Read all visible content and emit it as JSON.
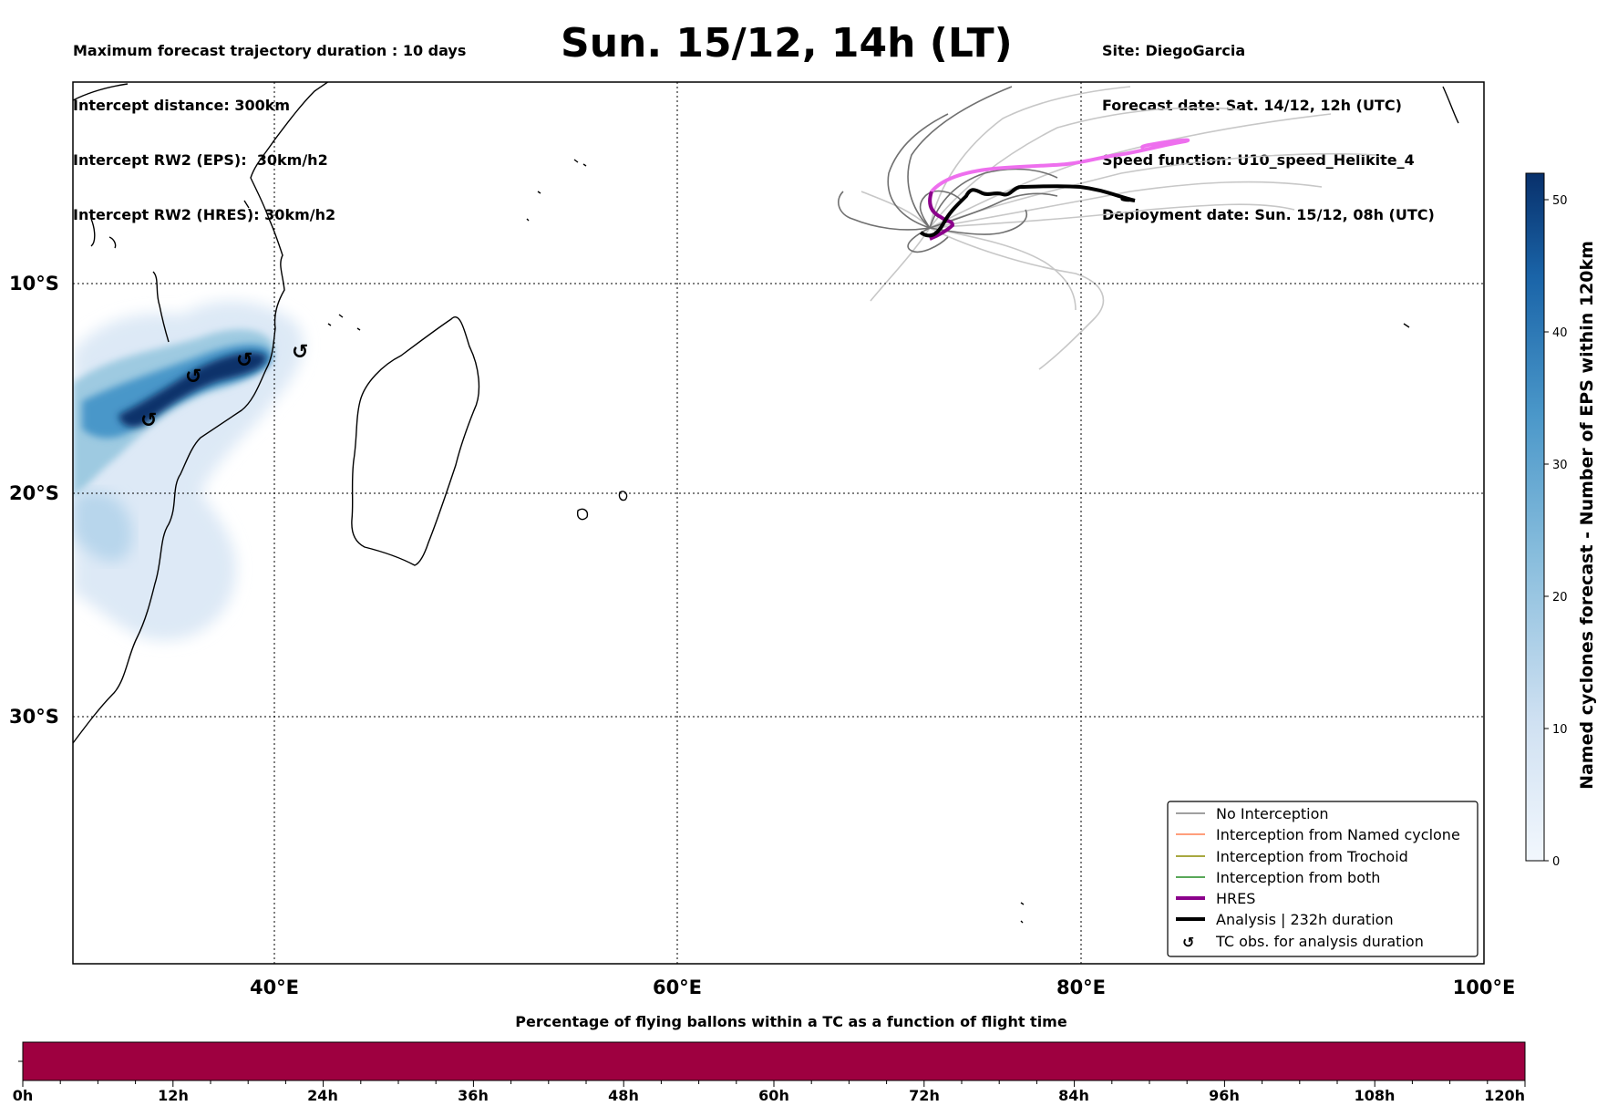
{
  "header": {
    "left_lines": [
      "Maximum forecast trajectory duration : 10 days",
      "Intercept distance: 300km",
      "Intercept RW2 (EPS):  30km/h2",
      "Intercept RW2 (HRES): 30km/h2"
    ],
    "title": "Sun. 15/12, 14h (LT)",
    "right_lines": [
      "Site: DiegoGarcia",
      "Forecast date: Sat. 14/12, 12h (UTC)",
      "Speed function: U10_speed_Helikite_4",
      "Deployment date: Sun. 15/12, 08h (UTC)"
    ]
  },
  "map": {
    "lat_labels": [
      "10°S",
      "20°S",
      "30°S"
    ],
    "lon_labels": [
      "40°E",
      "60°E",
      "80°E",
      "100°E"
    ],
    "tc_obs_icon": "tc-obs-icon"
  },
  "colorbar": {
    "title": "Named cyclones forecast - Number of EPS within 120km",
    "ticks": [
      "0",
      "10",
      "20",
      "30",
      "40",
      "50"
    ],
    "color_low": "#f2f7fd",
    "color_high": "#08306b"
  },
  "legend": {
    "items": [
      {
        "label": "No Interception",
        "color": "#808080"
      },
      {
        "label": "Interception from Named cyclone",
        "color": "#ff7f50"
      },
      {
        "label": "Interception from Trochoid",
        "color": "#8b8b00"
      },
      {
        "label": "Interception from both",
        "color": "#228b22"
      },
      {
        "label": "HRES",
        "color": "#8b008b"
      },
      {
        "label": "Analysis | 232h duration",
        "color": "#000000"
      },
      {
        "label": "TC obs. for analysis duration",
        "color": "#000000"
      }
    ]
  },
  "timebar": {
    "title": "Percentage of flying ballons within a TC as a function of flight time",
    "ticks": [
      "0h",
      "12h",
      "24h",
      "36h",
      "48h",
      "60h",
      "72h",
      "84h",
      "96h",
      "108h",
      "120h"
    ],
    "fill_color": "#9e0040"
  },
  "colors": {
    "hres_track": "#8b008b",
    "hres_track_light": "#ee6fee",
    "analysis_track": "#000000",
    "ensemble_track": "#7a7a7a"
  }
}
